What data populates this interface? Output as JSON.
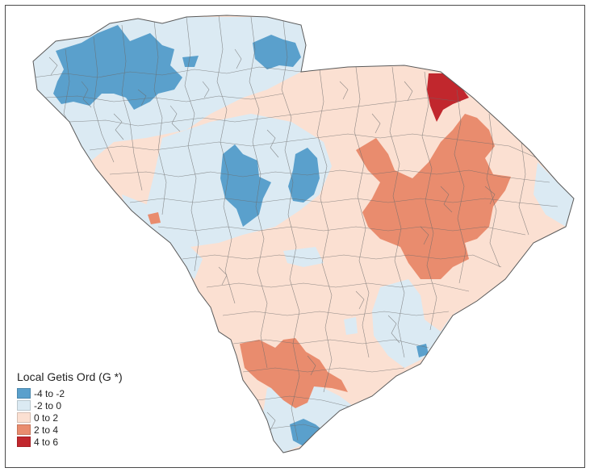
{
  "legend": {
    "title": "Local Getis Ord (G *)",
    "items": [
      {
        "label": "-4 to -2",
        "color": "#5aa0cc"
      },
      {
        "label": "-2 to 0",
        "color": "#dbeaf3"
      },
      {
        "label": "0 to 2",
        "color": "#fbe0d2"
      },
      {
        "label": "2 to 4",
        "color": "#e98c6e"
      },
      {
        "label": "4 to 6",
        "color": "#c1272d"
      }
    ]
  },
  "colors": {
    "boundary": "#6b6b6b",
    "frame": "#4a4a4a",
    "background": "#ffffff"
  }
}
